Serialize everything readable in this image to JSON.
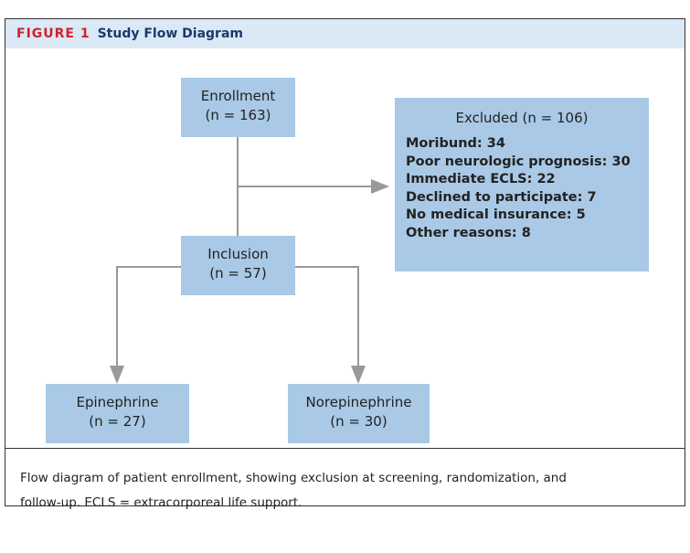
{
  "header": {
    "label": "FIGURE 1",
    "title": "Study Flow Diagram"
  },
  "nodes": [
    {
      "title": "Enrollment",
      "count": "(n = 163)"
    },
    {
      "title": "Excluded (n = 106)",
      "items": [
        "Moribund: 34",
        "Poor neurologic prognosis: 30",
        "Immediate ECLS: 22",
        "Declined to participate: 7",
        "No medical insurance: 5",
        "Other reasons: 8"
      ]
    },
    {
      "title": "Inclusion",
      "count": "(n = 57)"
    },
    {
      "title": "Epinephrine",
      "count": "(n = 27)"
    },
    {
      "title": "Norepinephrine",
      "count": "(n = 30)"
    }
  ],
  "caption": "Flow diagram of patient enrollment, showing exclusion at screening, randomization, and follow-up. ECLS = extracorporeal life support."
}
